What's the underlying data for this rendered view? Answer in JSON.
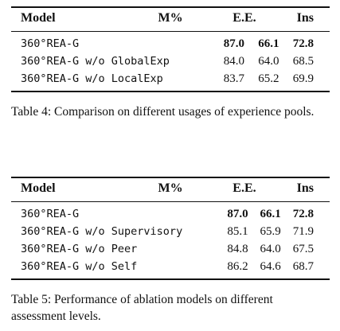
{
  "table4": {
    "headers": {
      "model": "Model",
      "m": "M%",
      "ee": "E.E.",
      "ins": "Ins"
    },
    "rows": [
      {
        "model": "360°REA-G",
        "m": "87.0",
        "ee": "66.1",
        "ins": "72.8"
      },
      {
        "model": "360°REA-G w/o GlobalExp",
        "m": "84.0",
        "ee": "64.0",
        "ins": "68.5"
      },
      {
        "model": "360°REA-G w/o LocalExp",
        "m": "83.7",
        "ee": "65.2",
        "ins": "69.9"
      }
    ],
    "caption": "Table 4: Comparison on different usages of experience pools."
  },
  "table5": {
    "headers": {
      "model": "Model",
      "m": "M%",
      "ee": "E.E.",
      "ins": "Ins"
    },
    "rows": [
      {
        "model": "360°REA-G",
        "m": "87.0",
        "ee": "66.1",
        "ins": "72.8"
      },
      {
        "model": "360°REA-G w/o Supervisory",
        "m": "85.1",
        "ee": "65.9",
        "ins": "71.9"
      },
      {
        "model": "360°REA-G w/o Peer",
        "m": "84.8",
        "ee": "64.0",
        "ins": "67.5"
      },
      {
        "model": "360°REA-G w/o Self",
        "m": "86.2",
        "ee": "64.6",
        "ins": "68.7"
      }
    ],
    "caption": "Table 5: Performance of ablation models on different assessment levels."
  }
}
